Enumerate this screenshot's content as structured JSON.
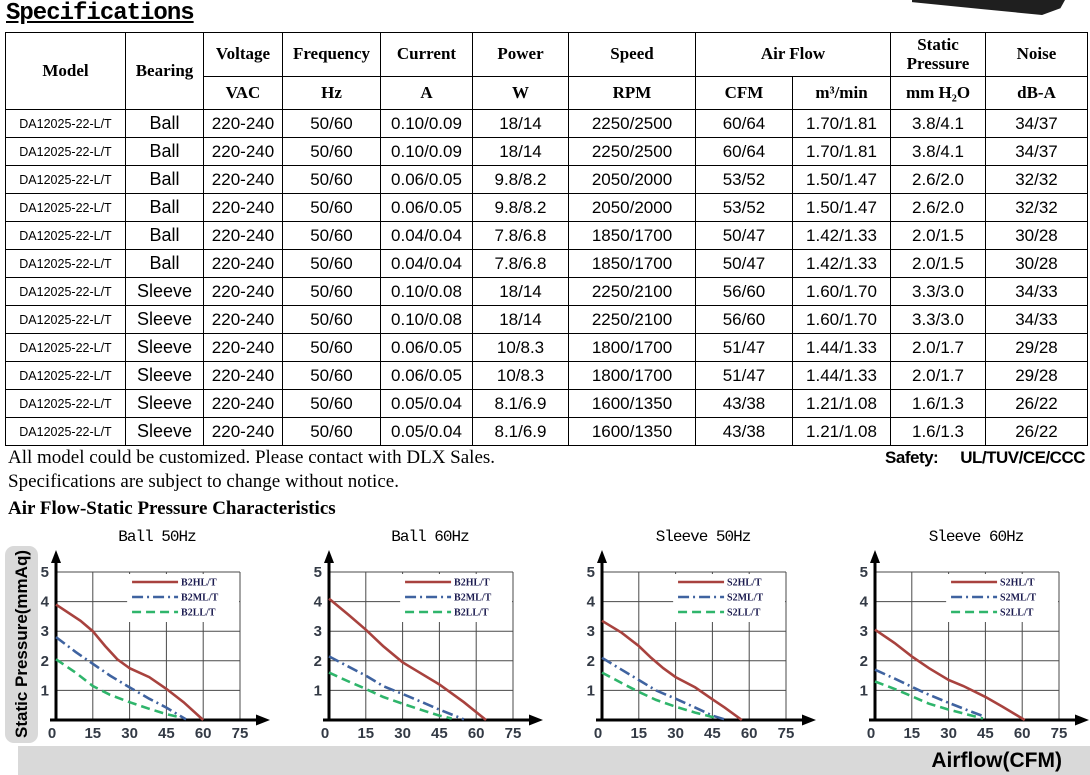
{
  "page": {
    "title": "Specifications",
    "notes": {
      "line1": "All model could be customized. Please contact with DLX Sales.",
      "line2": "Specifications are subject to change without notice.",
      "safety_label": "Safety:",
      "safety_value": "UL/TUV/CE/CCC"
    }
  },
  "table": {
    "header": {
      "model": "Model",
      "bearing": "Bearing",
      "voltage": {
        "name": "Voltage",
        "unit": "VAC"
      },
      "frequency": {
        "name": "Frequency",
        "unit": "Hz"
      },
      "current": {
        "name": "Current",
        "unit": "A"
      },
      "power": {
        "name": "Power",
        "unit": "W"
      },
      "speed": {
        "name": "Speed",
        "unit": "RPM"
      },
      "airflow": {
        "name": "Air Flow",
        "unit1": "CFM",
        "unit2": "m³/min"
      },
      "static_pressure": {
        "name": "Static Pressure",
        "unit": "mm H₂O"
      },
      "noise": {
        "name": "Noise",
        "unit": "dB-A"
      }
    },
    "rows": [
      {
        "model": "DA12025-22-L/T",
        "bearing": "Ball",
        "voltage": "220-240",
        "frequency": "50/60",
        "current": "0.10/0.09",
        "power": "18/14",
        "speed": "2250/2500",
        "cfm": "60/64",
        "m3min": "1.70/1.81",
        "sp": "3.8/4.1",
        "noise": "34/37"
      },
      {
        "model": "DA12025-22-L/T",
        "bearing": "Ball",
        "voltage": "220-240",
        "frequency": "50/60",
        "current": "0.10/0.09",
        "power": "18/14",
        "speed": "2250/2500",
        "cfm": "60/64",
        "m3min": "1.70/1.81",
        "sp": "3.8/4.1",
        "noise": "34/37"
      },
      {
        "model": "DA12025-22-L/T",
        "bearing": "Ball",
        "voltage": "220-240",
        "frequency": "50/60",
        "current": "0.06/0.05",
        "power": "9.8/8.2",
        "speed": "2050/2000",
        "cfm": "53/52",
        "m3min": "1.50/1.47",
        "sp": "2.6/2.0",
        "noise": "32/32"
      },
      {
        "model": "DA12025-22-L/T",
        "bearing": "Ball",
        "voltage": "220-240",
        "frequency": "50/60",
        "current": "0.06/0.05",
        "power": "9.8/8.2",
        "speed": "2050/2000",
        "cfm": "53/52",
        "m3min": "1.50/1.47",
        "sp": "2.6/2.0",
        "noise": "32/32"
      },
      {
        "model": "DA12025-22-L/T",
        "bearing": "Ball",
        "voltage": "220-240",
        "frequency": "50/60",
        "current": "0.04/0.04",
        "power": "7.8/6.8",
        "speed": "1850/1700",
        "cfm": "50/47",
        "m3min": "1.42/1.33",
        "sp": "2.0/1.5",
        "noise": "30/28"
      },
      {
        "model": "DA12025-22-L/T",
        "bearing": "Ball",
        "voltage": "220-240",
        "frequency": "50/60",
        "current": "0.04/0.04",
        "power": "7.8/6.8",
        "speed": "1850/1700",
        "cfm": "50/47",
        "m3min": "1.42/1.33",
        "sp": "2.0/1.5",
        "noise": "30/28"
      },
      {
        "model": "DA12025-22-L/T",
        "bearing": "Sleeve",
        "voltage": "220-240",
        "frequency": "50/60",
        "current": "0.10/0.08",
        "power": "18/14",
        "speed": "2250/2100",
        "cfm": "56/60",
        "m3min": "1.60/1.70",
        "sp": "3.3/3.0",
        "noise": "34/33"
      },
      {
        "model": "DA12025-22-L/T",
        "bearing": "Sleeve",
        "voltage": "220-240",
        "frequency": "50/60",
        "current": "0.10/0.08",
        "power": "18/14",
        "speed": "2250/2100",
        "cfm": "56/60",
        "m3min": "1.60/1.70",
        "sp": "3.3/3.0",
        "noise": "34/33"
      },
      {
        "model": "DA12025-22-L/T",
        "bearing": "Sleeve",
        "voltage": "220-240",
        "frequency": "50/60",
        "current": "0.06/0.05",
        "power": "10/8.3",
        "speed": "1800/1700",
        "cfm": "51/47",
        "m3min": "1.44/1.33",
        "sp": "2.0/1.7",
        "noise": "29/28"
      },
      {
        "model": "DA12025-22-L/T",
        "bearing": "Sleeve",
        "voltage": "220-240",
        "frequency": "50/60",
        "current": "0.06/0.05",
        "power": "10/8.3",
        "speed": "1800/1700",
        "cfm": "51/47",
        "m3min": "1.44/1.33",
        "sp": "2.0/1.7",
        "noise": "29/28"
      },
      {
        "model": "DA12025-22-L/T",
        "bearing": "Sleeve",
        "voltage": "220-240",
        "frequency": "50/60",
        "current": "0.05/0.04",
        "power": "8.1/6.9",
        "speed": "1600/1350",
        "cfm": "43/38",
        "m3min": "1.21/1.08",
        "sp": "1.6/1.3",
        "noise": "26/22"
      },
      {
        "model": "DA12025-22-L/T",
        "bearing": "Sleeve",
        "voltage": "220-240",
        "frequency": "50/60",
        "current": "0.05/0.04",
        "power": "8.1/6.9",
        "speed": "1600/1350",
        "cfm": "43/38",
        "m3min": "1.21/1.08",
        "sp": "1.6/1.3",
        "noise": "26/22"
      }
    ]
  },
  "charts_section": {
    "heading": "Air Flow-Static Pressure Characteristics",
    "ylabel": "Static Pressure(mmAq)",
    "xlabel": "Airflow(CFM)"
  },
  "chart_data": [
    {
      "type": "line",
      "title": "Ball 50Hz",
      "xlabel": "Airflow(CFM)",
      "ylabel": "Static Pressure(mmAq)",
      "xlim": [
        0,
        75
      ],
      "ylim": [
        0,
        5
      ],
      "xticks": [
        0,
        15,
        30,
        45,
        60,
        75
      ],
      "yticks": [
        0,
        1,
        2,
        3,
        4,
        5
      ],
      "grid": true,
      "legend_position": "top-right",
      "series": [
        {
          "name": "B2HL/T",
          "color": "#a8423e",
          "style": "solid",
          "points": [
            [
              0,
              3.9
            ],
            [
              10,
              3.35
            ],
            [
              15,
              3.0
            ],
            [
              20,
              2.5
            ],
            [
              25,
              2.05
            ],
            [
              30,
              1.75
            ],
            [
              38,
              1.45
            ],
            [
              45,
              1.05
            ],
            [
              52,
              0.6
            ],
            [
              60,
              0
            ]
          ]
        },
        {
          "name": "B2ML/T",
          "color": "#3f63a0",
          "style": "dashdot",
          "points": [
            [
              0,
              2.8
            ],
            [
              8,
              2.3
            ],
            [
              15,
              1.9
            ],
            [
              22,
              1.5
            ],
            [
              30,
              1.1
            ],
            [
              38,
              0.72
            ],
            [
              45,
              0.42
            ],
            [
              53,
              0.02
            ]
          ]
        },
        {
          "name": "B2LL/T",
          "color": "#2fb56b",
          "style": "dashed",
          "points": [
            [
              0,
              2.05
            ],
            [
              8,
              1.6
            ],
            [
              15,
              1.15
            ],
            [
              22,
              0.85
            ],
            [
              30,
              0.6
            ],
            [
              38,
              0.38
            ],
            [
              45,
              0.2
            ],
            [
              51,
              0.08
            ]
          ]
        }
      ]
    },
    {
      "type": "line",
      "title": "Ball 60Hz",
      "xlabel": "Airflow(CFM)",
      "ylabel": "Static Pressure(mmAq)",
      "xlim": [
        0,
        75
      ],
      "ylim": [
        0,
        5
      ],
      "xticks": [
        0,
        15,
        30,
        45,
        60,
        75
      ],
      "yticks": [
        0,
        1,
        2,
        3,
        4,
        5
      ],
      "grid": true,
      "legend_position": "top-right",
      "series": [
        {
          "name": "B2HL/T",
          "color": "#a8423e",
          "style": "solid",
          "points": [
            [
              0,
              4.1
            ],
            [
              8,
              3.55
            ],
            [
              15,
              3.05
            ],
            [
              22,
              2.5
            ],
            [
              30,
              1.95
            ],
            [
              36,
              1.65
            ],
            [
              45,
              1.2
            ],
            [
              55,
              0.6
            ],
            [
              64,
              0
            ]
          ]
        },
        {
          "name": "B2ML/T",
          "color": "#3f63a0",
          "style": "dashdot",
          "points": [
            [
              0,
              2.15
            ],
            [
              8,
              1.8
            ],
            [
              15,
              1.5
            ],
            [
              22,
              1.15
            ],
            [
              30,
              0.88
            ],
            [
              38,
              0.6
            ],
            [
              45,
              0.35
            ],
            [
              55,
              0.02
            ]
          ]
        },
        {
          "name": "B2LL/T",
          "color": "#2fb56b",
          "style": "dashed",
          "points": [
            [
              0,
              1.6
            ],
            [
              8,
              1.3
            ],
            [
              15,
              1.05
            ],
            [
              22,
              0.78
            ],
            [
              30,
              0.55
            ],
            [
              38,
              0.33
            ],
            [
              45,
              0.15
            ],
            [
              50,
              0.05
            ]
          ]
        }
      ]
    },
    {
      "type": "line",
      "title": "Sleeve 50Hz",
      "xlabel": "Airflow(CFM)",
      "ylabel": "Static Pressure(mmAq)",
      "xlim": [
        0,
        75
      ],
      "ylim": [
        0,
        5
      ],
      "xticks": [
        0,
        15,
        30,
        45,
        60,
        75
      ],
      "yticks": [
        0,
        1,
        2,
        3,
        4,
        5
      ],
      "grid": true,
      "legend_position": "top-right",
      "series": [
        {
          "name": "S2HL/T",
          "color": "#a8423e",
          "style": "solid",
          "points": [
            [
              0,
              3.35
            ],
            [
              8,
              2.95
            ],
            [
              15,
              2.5
            ],
            [
              20,
              2.1
            ],
            [
              25,
              1.75
            ],
            [
              30,
              1.45
            ],
            [
              38,
              1.1
            ],
            [
              45,
              0.7
            ],
            [
              50,
              0.42
            ],
            [
              57,
              0
            ]
          ]
        },
        {
          "name": "S2ML/T",
          "color": "#3f63a0",
          "style": "dashdot",
          "points": [
            [
              0,
              2.1
            ],
            [
              8,
              1.7
            ],
            [
              15,
              1.35
            ],
            [
              22,
              1.0
            ],
            [
              30,
              0.72
            ],
            [
              38,
              0.42
            ],
            [
              45,
              0.15
            ],
            [
              50,
              0.02
            ]
          ]
        },
        {
          "name": "S2LL/T",
          "color": "#2fb56b",
          "style": "dashed",
          "points": [
            [
              0,
              1.6
            ],
            [
              8,
              1.25
            ],
            [
              15,
              0.95
            ],
            [
              22,
              0.68
            ],
            [
              30,
              0.45
            ],
            [
              38,
              0.25
            ],
            [
              46,
              0.08
            ]
          ]
        }
      ]
    },
    {
      "type": "line",
      "title": "Sleeve 60Hz",
      "xlabel": "Airflow(CFM)",
      "ylabel": "Static Pressure(mmAq)",
      "xlim": [
        0,
        75
      ],
      "ylim": [
        0,
        5
      ],
      "xticks": [
        0,
        15,
        30,
        45,
        60,
        75
      ],
      "yticks": [
        0,
        1,
        2,
        3,
        4,
        5
      ],
      "grid": true,
      "legend_position": "top-right",
      "series": [
        {
          "name": "S2HL/T",
          "color": "#a8423e",
          "style": "solid",
          "points": [
            [
              0,
              3.05
            ],
            [
              8,
              2.6
            ],
            [
              15,
              2.15
            ],
            [
              22,
              1.75
            ],
            [
              30,
              1.35
            ],
            [
              36,
              1.15
            ],
            [
              45,
              0.78
            ],
            [
              52,
              0.45
            ],
            [
              61,
              0
            ]
          ]
        },
        {
          "name": "S2ML/T",
          "color": "#3f63a0",
          "style": "dashdot",
          "points": [
            [
              0,
              1.7
            ],
            [
              8,
              1.4
            ],
            [
              15,
              1.12
            ],
            [
              22,
              0.85
            ],
            [
              30,
              0.58
            ],
            [
              38,
              0.32
            ],
            [
              45,
              0.1
            ]
          ]
        },
        {
          "name": "S2LL/T",
          "color": "#2fb56b",
          "style": "dashed",
          "points": [
            [
              0,
              1.3
            ],
            [
              8,
              1.05
            ],
            [
              15,
              0.8
            ],
            [
              22,
              0.55
            ],
            [
              30,
              0.35
            ],
            [
              38,
              0.18
            ],
            [
              44,
              0.05
            ]
          ]
        }
      ]
    }
  ]
}
